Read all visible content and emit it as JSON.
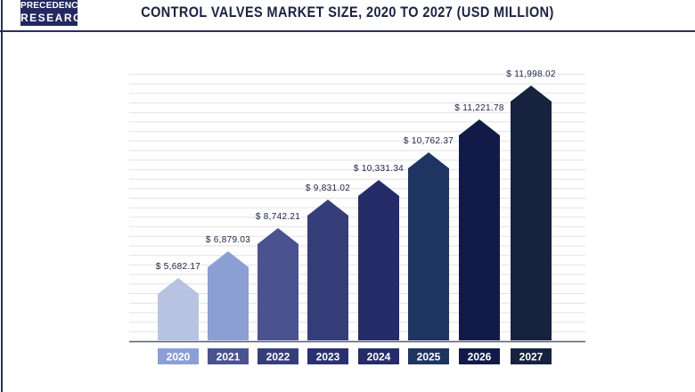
{
  "logo": {
    "line1": "PRECEDENCE",
    "line2": "RESEARCH"
  },
  "chart_data": {
    "type": "bar",
    "title": "CONTROL VALVES MARKET SIZE, 2020 TO 2027 (USD MILLION)",
    "categories": [
      "2020",
      "2021",
      "2022",
      "2023",
      "2024",
      "2025",
      "2026",
      "2027"
    ],
    "values": [
      5682.17,
      6879.03,
      8742.21,
      9831.02,
      10331.34,
      10762.37,
      11221.78,
      11998.02
    ],
    "data_labels": [
      "$ 5,682.17",
      "$ 6,879.03",
      "$ 8,742.21",
      "$ 9,831.02",
      "$ 10,331.34",
      "$ 10,762.37",
      "$ 11,221.78",
      "$ 11,998.02"
    ],
    "grid": true,
    "bar_colors": [
      "#b8c2e1",
      "#8c9fd4",
      "#4a5390",
      "#363e7a",
      "#252c68",
      "#1f3561",
      "#121b48",
      "#17223f"
    ],
    "label_colors": [
      "#8c9fd4",
      "#4a5390",
      "#363e7a",
      "#2a3170",
      "#252c68",
      "#1f3561",
      "#121b48",
      "#17223f"
    ]
  }
}
